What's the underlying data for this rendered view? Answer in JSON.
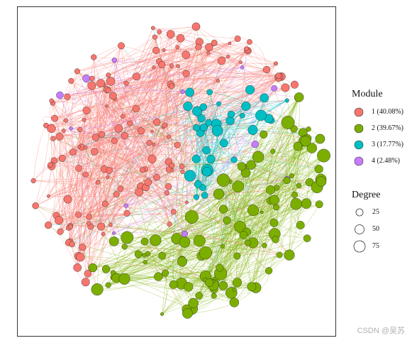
{
  "legend": {
    "module_title": "Module",
    "modules": [
      {
        "label": "1 (40.08%)",
        "color": "#F8766D"
      },
      {
        "label": "2 (39.67%)",
        "color": "#7CAE00"
      },
      {
        "label": "3 (17.77%)",
        "color": "#00BFC4"
      },
      {
        "label": "4 (2.48%)",
        "color": "#C77CFF"
      }
    ],
    "degree_title": "Degree",
    "degrees": [
      {
        "label": "25",
        "value": 25
      },
      {
        "label": "50",
        "value": 50
      },
      {
        "label": "75",
        "value": 75
      }
    ]
  },
  "watermark": "CSDN @吴苏"
}
